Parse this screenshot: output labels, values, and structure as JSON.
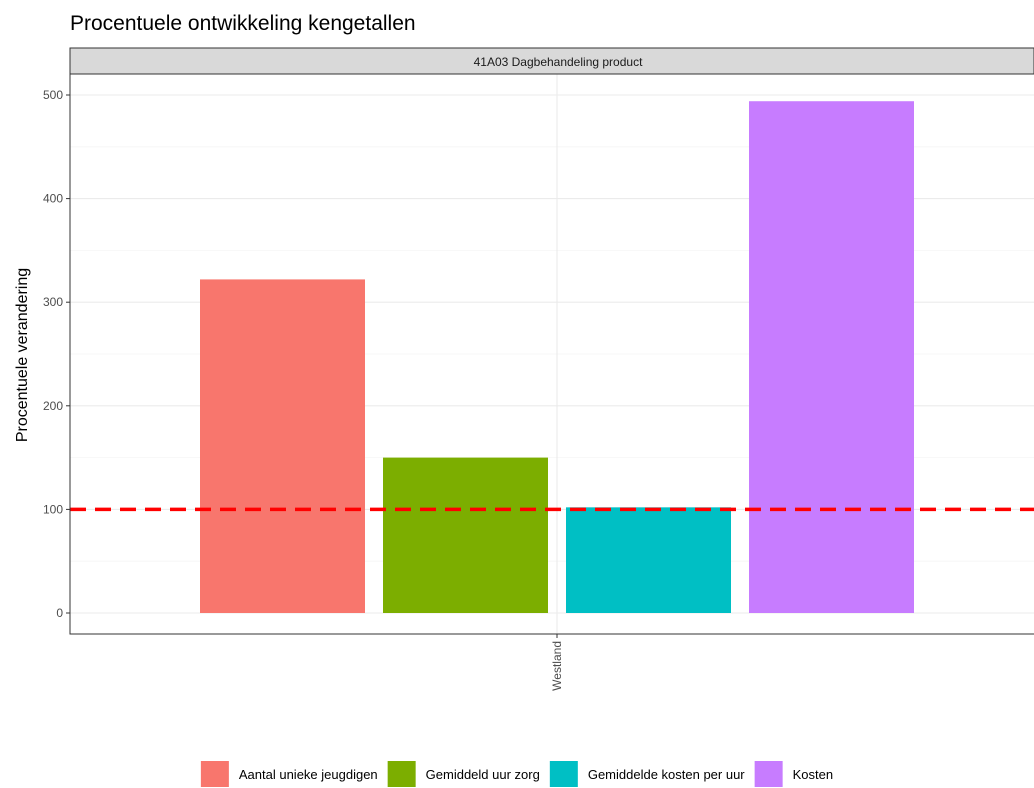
{
  "chart_data": {
    "type": "bar",
    "title": "Procentuele ontwikkeling kengetallen",
    "facet_label": "41A03 Dagbehandeling product",
    "xlabel": "",
    "ylabel": "Procentuele verandering",
    "x_categories": [
      "Westland"
    ],
    "y_ticks": [
      0,
      100,
      200,
      300,
      400,
      500
    ],
    "ylim": [
      -20,
      520
    ],
    "reference_line": {
      "y": 100,
      "color": "#ff0000",
      "style": "dashed"
    },
    "grid": true,
    "legend_position": "bottom",
    "series": [
      {
        "name": "Aantal unieke jeugdigen",
        "values": [
          322
        ],
        "color": "#f8766d"
      },
      {
        "name": "Gemiddeld uur zorg",
        "values": [
          150
        ],
        "color": "#7cae00"
      },
      {
        "name": "Gemiddelde kosten per uur",
        "values": [
          102
        ],
        "color": "#00bfc4"
      },
      {
        "name": "Kosten",
        "values": [
          494
        ],
        "color": "#c77cff"
      }
    ]
  }
}
